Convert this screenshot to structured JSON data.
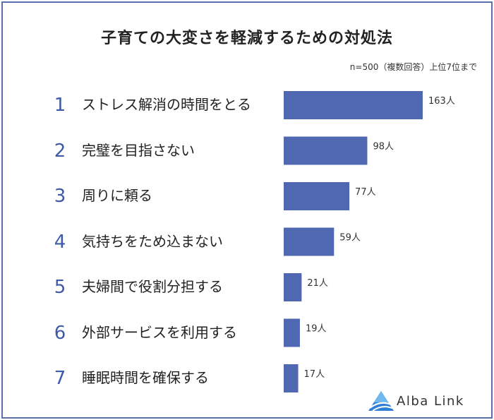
{
  "title": "子育ての大変さを軽減するための対処法",
  "note": "n=500（複数回答）上位7位まで",
  "brand": "Alba Link",
  "colors": {
    "bar": "#5068b2",
    "rank": "#3f5aa8",
    "border": "#5a6fb0"
  },
  "chart_data": {
    "type": "bar",
    "orientation": "horizontal",
    "title": "子育ての大変さを軽減するための対処法",
    "unit": "人",
    "categories": [
      "ストレス解消の時間をとる",
      "完璧を目指さない",
      "周りに頼る",
      "気持ちをため込まない",
      "夫婦間で役割分担する",
      "外部サービスを利用する",
      "睡眠時間を確保する"
    ],
    "ranks": [
      "1",
      "2",
      "3",
      "4",
      "5",
      "6",
      "7"
    ],
    "values": [
      163,
      98,
      77,
      59,
      21,
      19,
      17
    ],
    "value_labels": [
      "163人",
      "98人",
      "77人",
      "59人",
      "21人",
      "19人",
      "17人"
    ]
  }
}
